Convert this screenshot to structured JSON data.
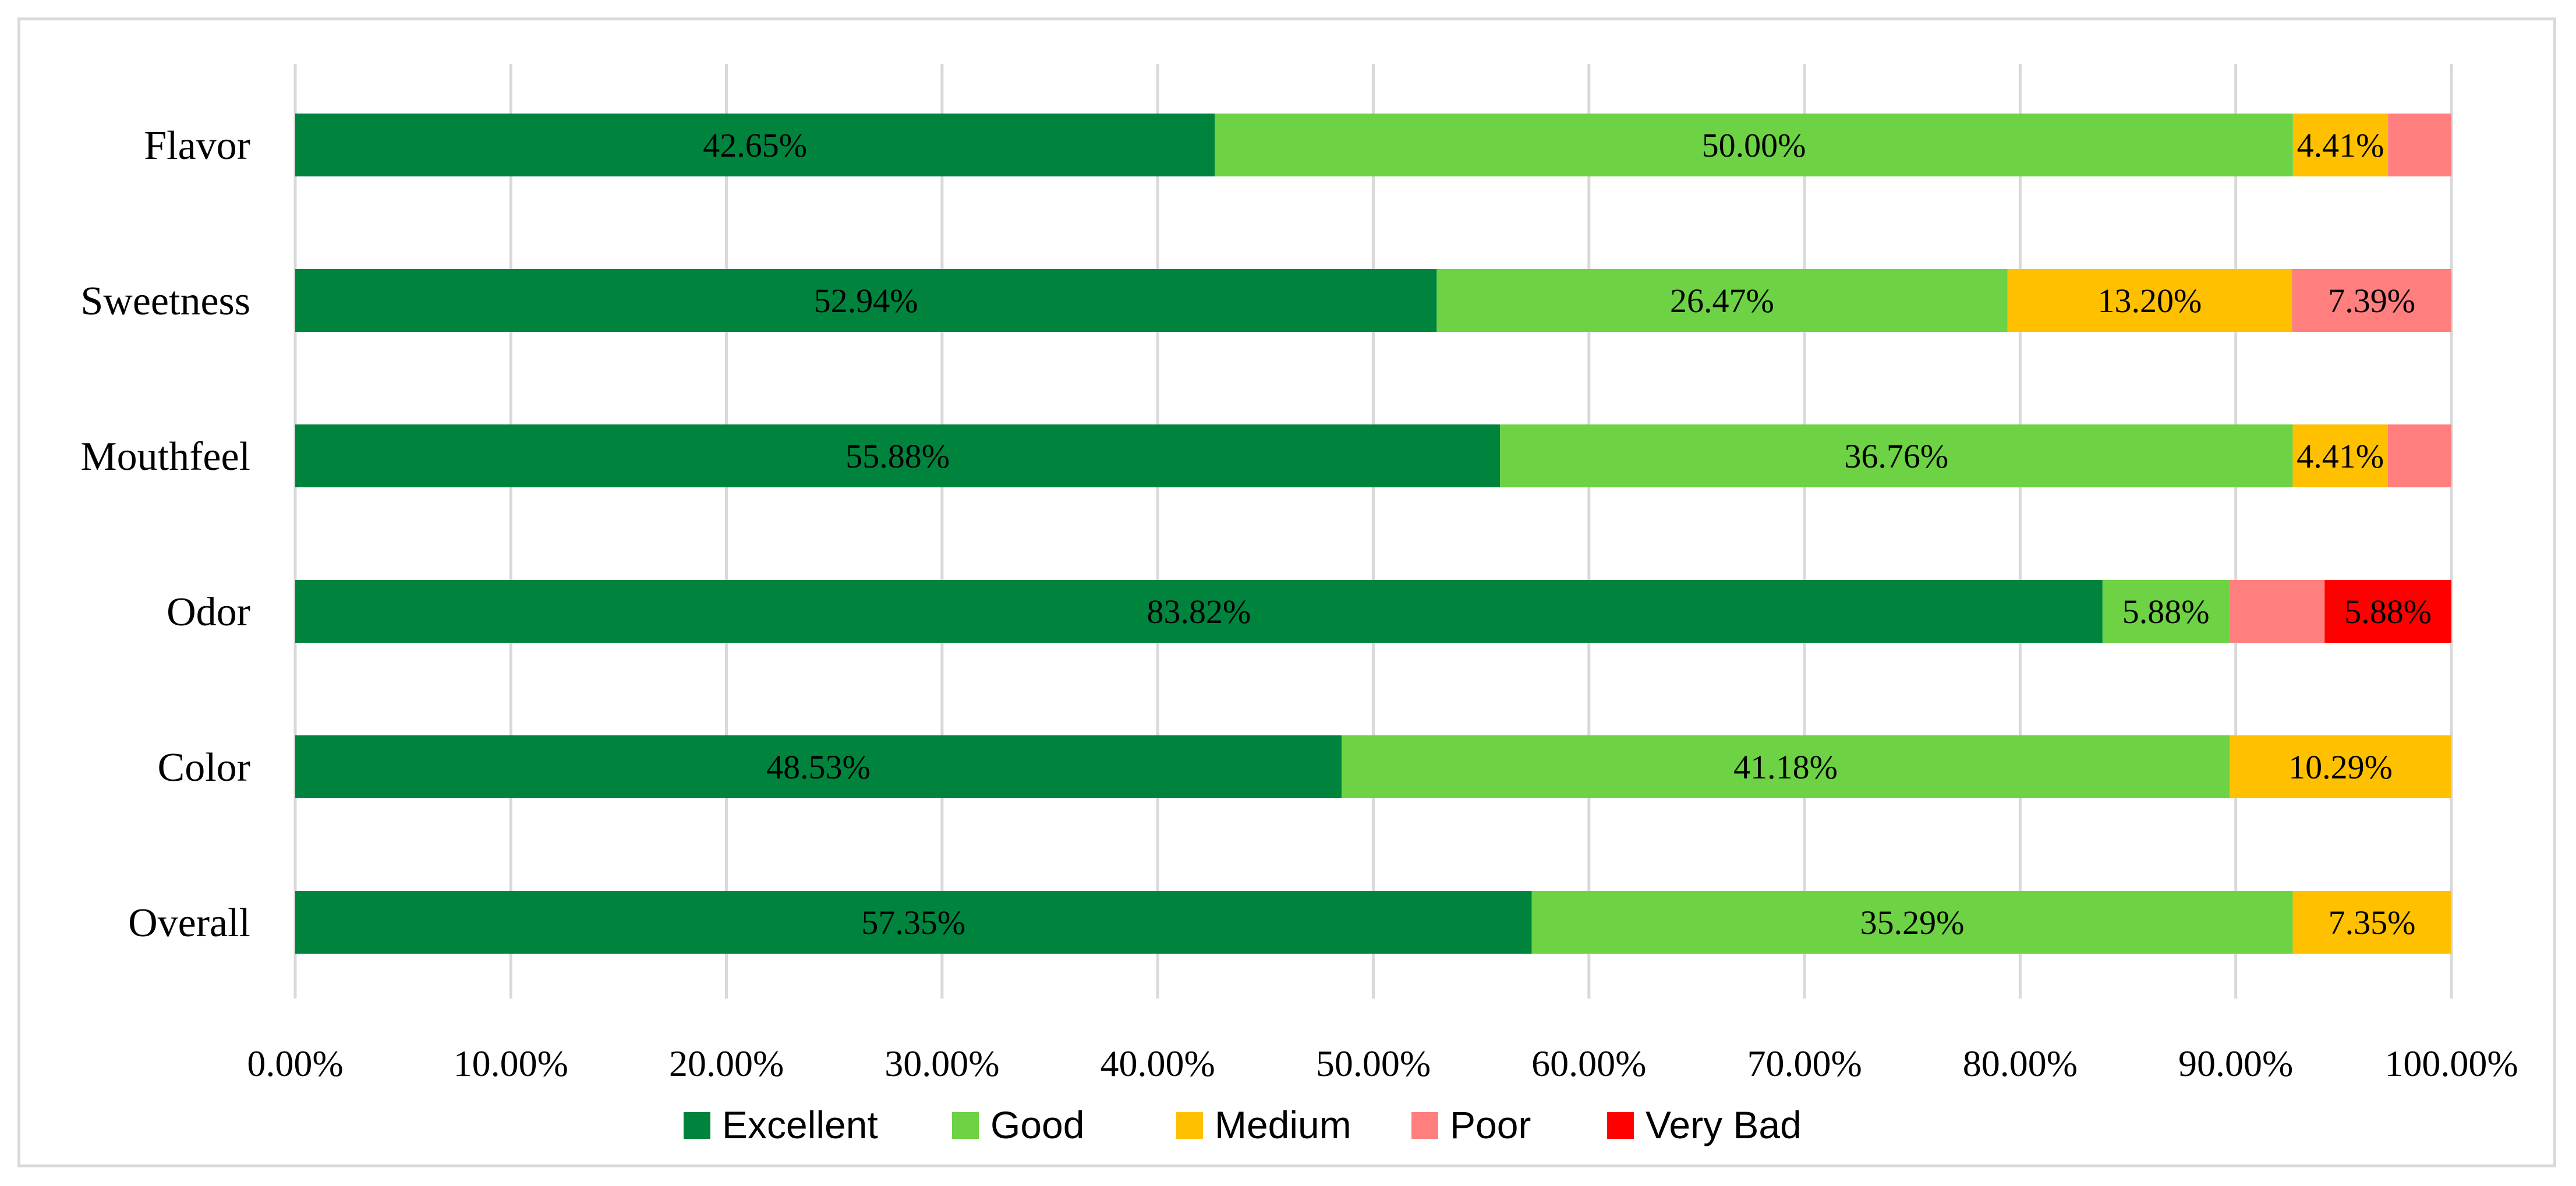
{
  "chart_data": {
    "type": "bar",
    "orientation": "horizontal",
    "stacked": true,
    "categories": [
      "Flavor",
      "Sweetness",
      "Mouthfeel",
      "Odor",
      "Color",
      "Overall"
    ],
    "series": [
      {
        "name": "Excellent",
        "color": "#00843d",
        "values": [
          42.65,
          52.94,
          55.88,
          83.82,
          48.53,
          57.35
        ],
        "labels": [
          "42.65%",
          "52.94%",
          "55.88%",
          "83.82%",
          "48.53%",
          "57.35%"
        ]
      },
      {
        "name": "Good",
        "color": "#6dd244",
        "values": [
          50.0,
          26.47,
          36.76,
          5.88,
          41.18,
          35.29
        ],
        "labels": [
          "50.00%",
          "26.47%",
          "36.76%",
          "5.88%",
          "41.18%",
          "35.29%"
        ]
      },
      {
        "name": "Medium",
        "color": "#ffc000",
        "values": [
          4.41,
          13.2,
          4.41,
          0,
          10.29,
          7.35
        ],
        "labels": [
          "4.41%",
          "13.20%",
          "4.41%",
          "",
          "10.29%",
          "7.35%"
        ]
      },
      {
        "name": "Poor",
        "color": "#ff7f7f",
        "values": [
          2.94,
          7.39,
          2.95,
          4.42,
          0,
          0
        ],
        "labels": [
          "",
          "7.39%",
          "",
          "",
          "",
          ""
        ]
      },
      {
        "name": "Very Bad",
        "color": "#ff0000",
        "values": [
          0,
          0,
          0,
          5.88,
          0,
          0
        ],
        "labels": [
          "",
          "",
          "",
          "5.88%",
          "",
          ""
        ]
      }
    ],
    "xlim": [
      0,
      100
    ],
    "xticks": [
      0,
      10,
      20,
      30,
      40,
      50,
      60,
      70,
      80,
      90,
      100
    ],
    "xtick_labels": [
      "0.00%",
      "10.00%",
      "20.00%",
      "30.00%",
      "40.00%",
      "50.00%",
      "60.00%",
      "70.00%",
      "80.00%",
      "90.00%",
      "100.00%"
    ],
    "grid": "vertical",
    "legend_position": "bottom",
    "title": "",
    "xlabel": "",
    "ylabel": ""
  }
}
